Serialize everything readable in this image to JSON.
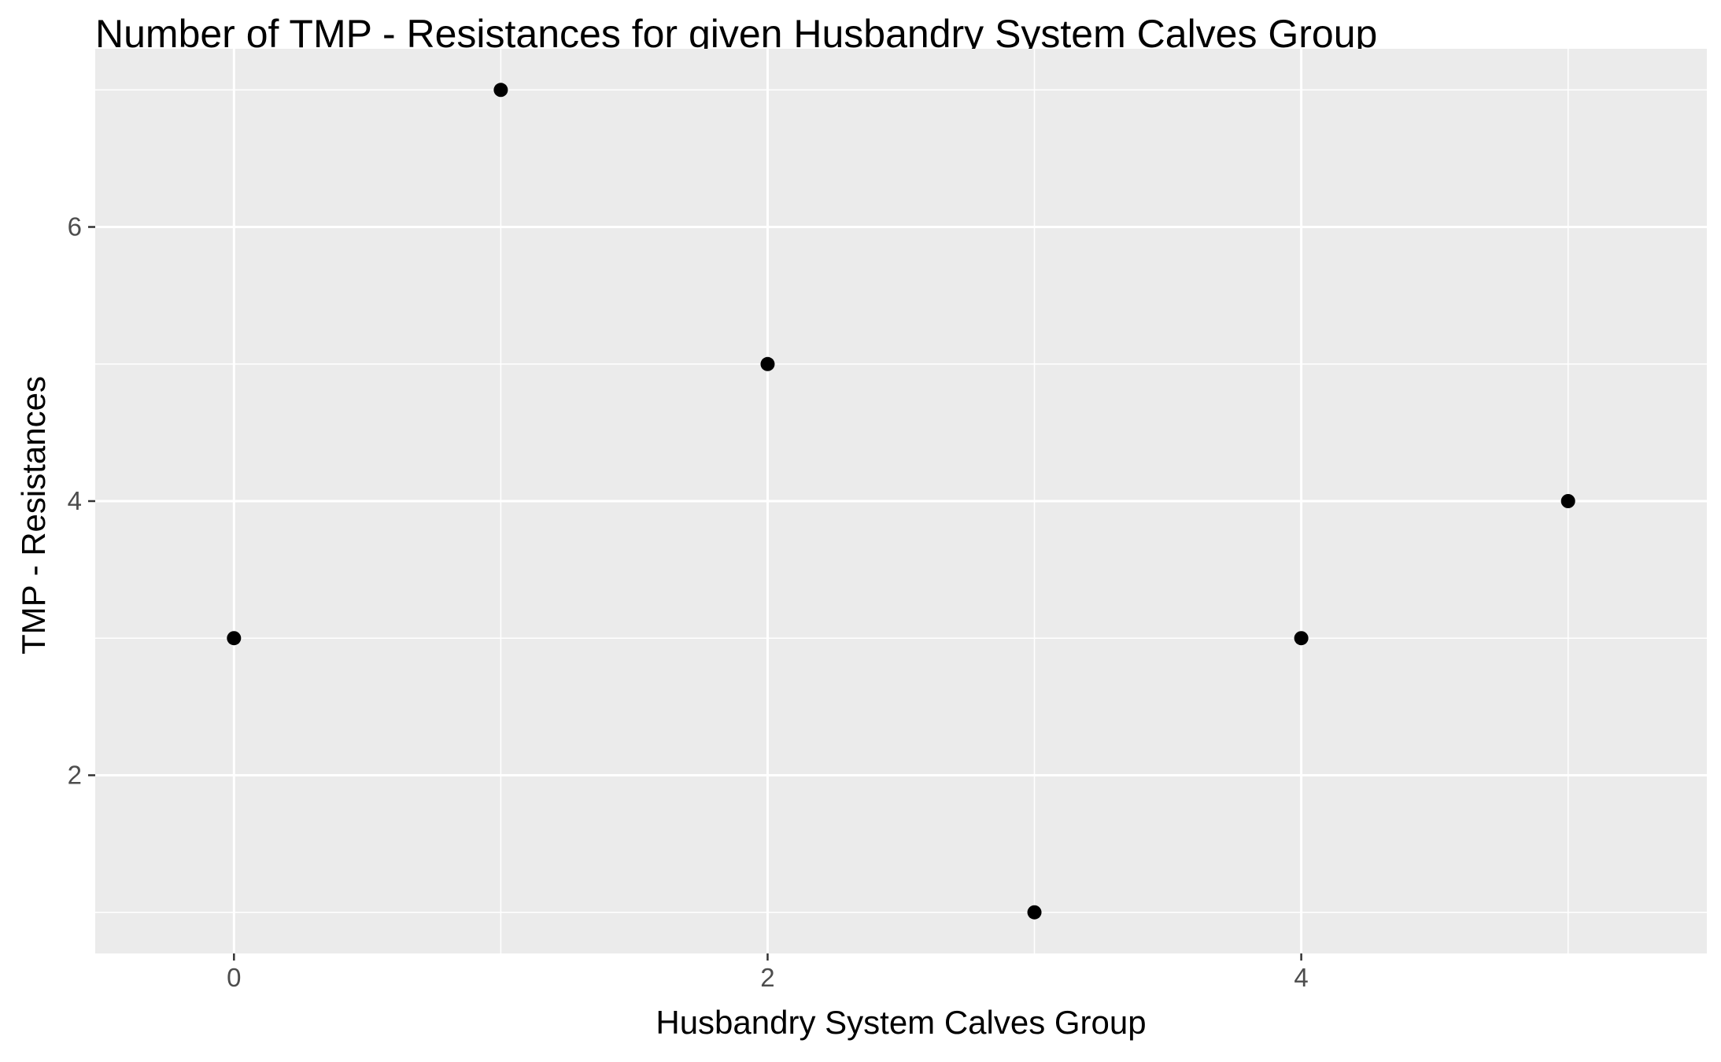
{
  "chart_data": {
    "type": "scatter",
    "title": "Number of TMP - Resistances for given Husbandry System Calves Group",
    "xlabel": "Husbandry System Calves Group",
    "ylabel": "TMP - Resistances",
    "x": [
      0,
      1,
      2,
      3,
      4,
      5
    ],
    "y": [
      3,
      7,
      5,
      1,
      3,
      4
    ],
    "x_ticks": [
      0,
      2,
      4
    ],
    "y_ticks": [
      2,
      4,
      6
    ],
    "xlim": [
      -0.52,
      5.52
    ],
    "ylim": [
      0.7,
      7.3
    ],
    "grid": true,
    "colors": {
      "panel_background": "#ebebeb",
      "grid": "#ffffff",
      "point": "#000000",
      "tick_label": "#4d4d4d",
      "tick_mark": "#333333"
    }
  }
}
